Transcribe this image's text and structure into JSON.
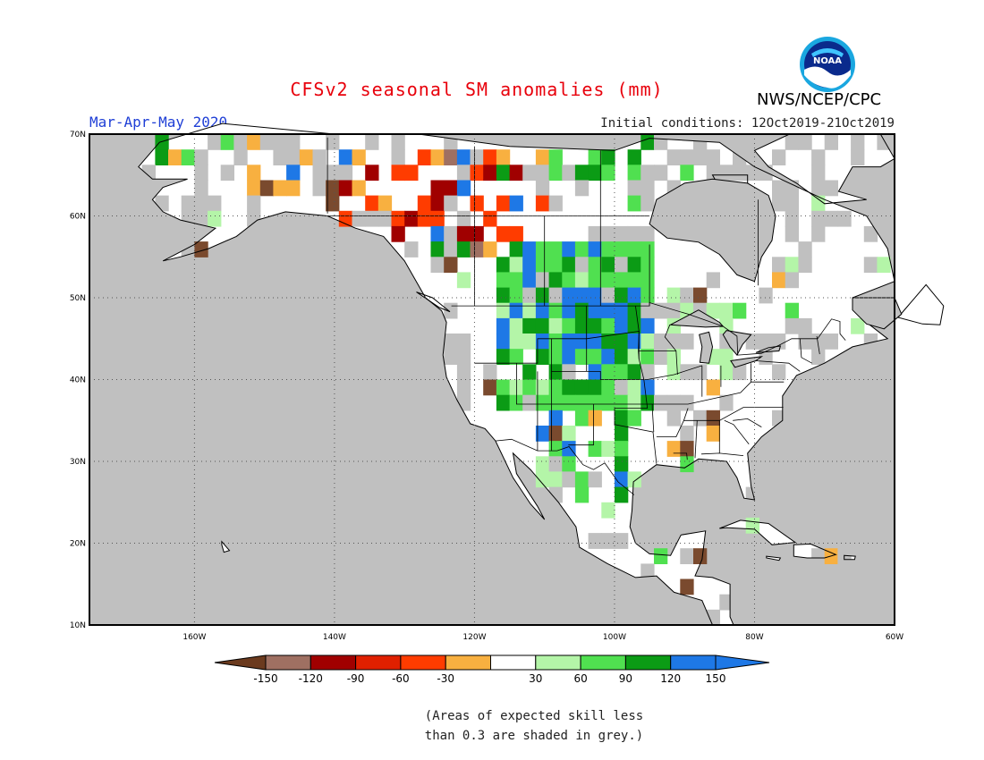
{
  "title": "CFSv2 seasonal SM anomalies (mm)",
  "period": "Mar-Apr-May 2020",
  "initial_conditions": "Initial conditions: 12Oct2019-21Oct2019",
  "agency": "NWS/NCEP/CPC",
  "logo_text": "NOAA",
  "note_line1": "(Areas of expected skill less",
  "note_line2": "than 0.3 are shaded in grey.)",
  "map": {
    "lon_range": [
      -175,
      -60
    ],
    "lat_range": [
      10,
      70
    ],
    "lat_labels": [
      "10N",
      "20N",
      "30N",
      "40N",
      "50N",
      "60N",
      "70N"
    ],
    "lon_labels": [
      "160W",
      "140W",
      "120W",
      "100W",
      "80W",
      "60W"
    ],
    "colors": {
      "grey": "#c0c0c0",
      "white": "#ffffff",
      "land_line": "#000000",
      "grid": "#444444"
    }
  },
  "legend": {
    "ticks": [
      "-150",
      "-120",
      "-90",
      "-60",
      "-30",
      "30",
      "60",
      "90",
      "120",
      "150"
    ],
    "colors": [
      "#6b3a1e",
      "#9f7062",
      "#a00000",
      "#e02000",
      "#ff3c00",
      "#f8b040",
      "#ffffff",
      "#b4f5a8",
      "#50e050",
      "#0b9b15",
      "#1e78e6",
      "#1e78e6"
    ]
  }
}
